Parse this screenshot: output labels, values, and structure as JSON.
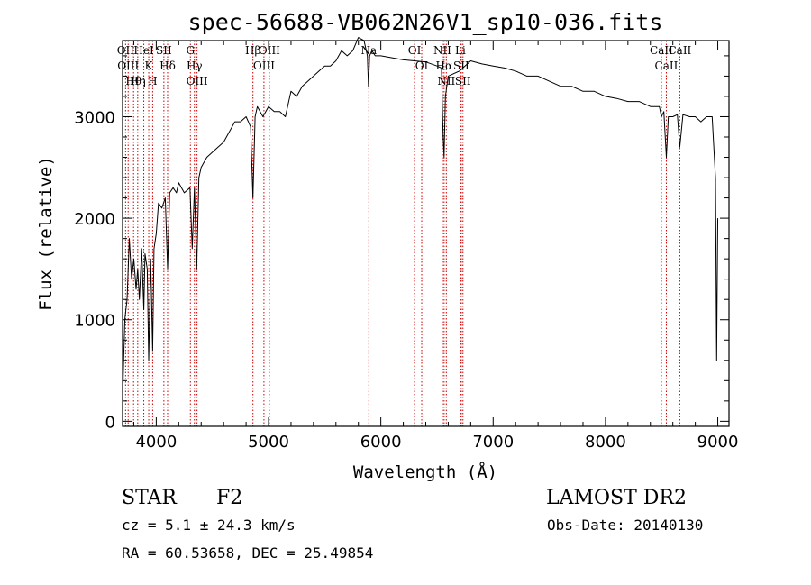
{
  "chart_data": {
    "type": "line",
    "title": "spec-56688-VB062N26V1_sp10-036.fits",
    "xlabel": "Wavelength (Å)",
    "ylabel": "Flux (relative)",
    "xlim": [
      3700,
      9100
    ],
    "ylim": [
      -50,
      3750
    ],
    "xticks": [
      4000,
      5000,
      6000,
      7000,
      8000,
      9000
    ],
    "yticks": [
      0,
      1000,
      2000,
      3000
    ],
    "grid": false,
    "series": [
      {
        "x": [
          3700,
          3710,
          3720,
          3740,
          3760,
          3780,
          3790,
          3800,
          3820,
          3835,
          3850,
          3870,
          3889,
          3900,
          3920,
          3933,
          3950,
          3968,
          3980,
          4000,
          4020,
          4050,
          4080,
          4101,
          4120,
          4150,
          4180,
          4200,
          4250,
          4300,
          4320,
          4340,
          4360,
          4380,
          4400,
          4450,
          4500,
          4550,
          4600,
          4650,
          4700,
          4750,
          4800,
          4840,
          4861,
          4880,
          4900,
          4950,
          5000,
          5050,
          5100,
          5150,
          5200,
          5250,
          5300,
          5350,
          5400,
          5450,
          5500,
          5550,
          5600,
          5650,
          5700,
          5750,
          5800,
          5850,
          5880,
          5890,
          5900,
          5920,
          5950,
          6000,
          6100,
          6200,
          6300,
          6400,
          6500,
          6540,
          6555,
          6563,
          6575,
          6600,
          6700,
          6800,
          6900,
          7000,
          7100,
          7200,
          7300,
          7400,
          7500,
          7600,
          7700,
          7800,
          7900,
          8000,
          8100,
          8200,
          8300,
          8400,
          8480,
          8498,
          8520,
          8542,
          8560,
          8600,
          8640,
          8662,
          8690,
          8750,
          8800,
          8850,
          8900,
          8950,
          8980,
          8990,
          9000
        ],
        "y": [
          200,
          600,
          1000,
          1200,
          1800,
          1400,
          1500,
          1600,
          1300,
          1500,
          1200,
          1700,
          1100,
          1650,
          1500,
          600,
          1600,
          700,
          1700,
          1850,
          2150,
          2100,
          2200,
          1500,
          2250,
          2300,
          2250,
          2350,
          2250,
          2300,
          1700,
          2300,
          1500,
          2400,
          2500,
          2600,
          2650,
          2700,
          2750,
          2850,
          2950,
          2950,
          3000,
          2900,
          2200,
          3000,
          3100,
          3000,
          3100,
          3050,
          3050,
          3000,
          3250,
          3200,
          3300,
          3350,
          3400,
          3450,
          3500,
          3500,
          3550,
          3650,
          3600,
          3650,
          3780,
          3750,
          3600,
          3300,
          3600,
          3650,
          3600,
          3600,
          3580,
          3560,
          3550,
          3540,
          3500,
          3480,
          2800,
          2600,
          3200,
          3400,
          3450,
          3550,
          3520,
          3500,
          3480,
          3450,
          3400,
          3400,
          3350,
          3300,
          3300,
          3250,
          3250,
          3200,
          3180,
          3150,
          3150,
          3100,
          3100,
          3000,
          3050,
          2600,
          3000,
          3000,
          3020,
          2700,
          3020,
          3000,
          3000,
          2950,
          3000,
          3000,
          2400,
          600,
          2000
        ]
      }
    ],
    "lines": [
      {
        "wl": 3727,
        "labels": [
          "OII"
        ]
      },
      {
        "wl": 3750,
        "labels": [
          "OIII"
        ]
      },
      {
        "wl": 3798,
        "labels": [
          "Hθ"
        ]
      },
      {
        "wl": 3835,
        "labels": [
          "Hη"
        ]
      },
      {
        "wl": 3889,
        "labels": [
          "HeI"
        ]
      },
      {
        "wl": 3933,
        "labels": [
          "K"
        ]
      },
      {
        "wl": 3968,
        "labels": [
          "H"
        ]
      },
      {
        "wl": 4068,
        "labels": [
          "SII"
        ]
      },
      {
        "wl": 4101,
        "labels": [
          "Hδ"
        ]
      },
      {
        "wl": 4304,
        "labels": [
          "G"
        ]
      },
      {
        "wl": 4340,
        "labels": [
          "Hγ"
        ]
      },
      {
        "wl": 4363,
        "labels": [
          "OIII"
        ]
      },
      {
        "wl": 4861,
        "labels": [
          "Hβ"
        ]
      },
      {
        "wl": 4959,
        "labels": [
          "OIII"
        ]
      },
      {
        "wl": 5007,
        "labels": [
          "OIII"
        ]
      },
      {
        "wl": 5893,
        "labels": [
          "Na"
        ]
      },
      {
        "wl": 6300,
        "labels": [
          "OI"
        ]
      },
      {
        "wl": 6364,
        "labels": [
          "OI"
        ]
      },
      {
        "wl": 6548,
        "labels": [
          "NII"
        ]
      },
      {
        "wl": 6563,
        "labels": [
          "Hα"
        ]
      },
      {
        "wl": 6583,
        "labels": [
          "NII"
        ]
      },
      {
        "wl": 6708,
        "labels": [
          "Li"
        ]
      },
      {
        "wl": 6716,
        "labels": [
          "SII"
        ]
      },
      {
        "wl": 6731,
        "labels": [
          "SII"
        ]
      },
      {
        "wl": 8498,
        "labels": [
          "CaII"
        ]
      },
      {
        "wl": 8542,
        "labels": [
          "CaII"
        ]
      },
      {
        "wl": 8662,
        "labels": [
          "CaII"
        ]
      }
    ],
    "colors": {
      "spectrum": "#000000",
      "lines": "#cc0000",
      "axes": "#000000"
    }
  },
  "info": {
    "type": "STAR",
    "subclass": "F2",
    "survey": "LAMOST DR2",
    "cz": "cz = 5.1 ± 24.3 km/s",
    "obsdate": "Obs-Date: 20140130",
    "coords": "RA =  60.53658, DEC =  25.49854"
  }
}
